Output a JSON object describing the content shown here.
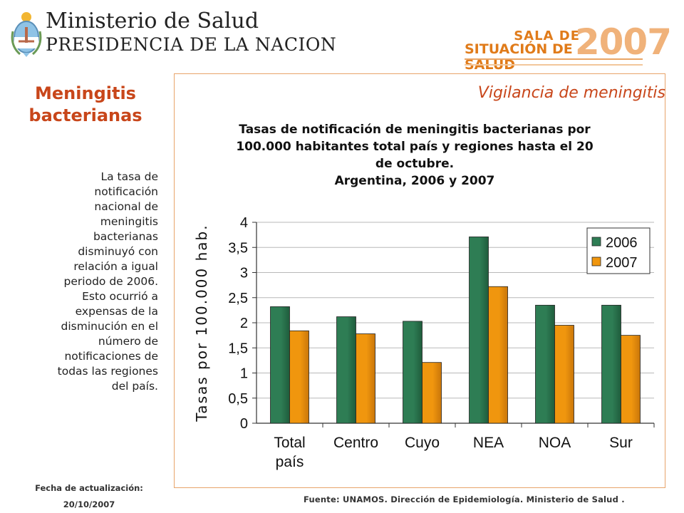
{
  "header": {
    "logo_icon": "argentina-coat-of-arms-icon",
    "ministry_name": "Ministerio de Salud",
    "ministry_sub": "PRESIDENCIA DE LA NACION",
    "sala_line1": "SALA DE",
    "sala_line2": "SITUACIÓN DE SALUD",
    "sala_year": "2007"
  },
  "sidebar": {
    "title_line1": "Meningitis",
    "title_line2": "bacterianas",
    "body_lines": [
      "La tasa de",
      "notificación",
      "nacional de",
      "meningitis",
      "bacterianas",
      "disminuyó con",
      "relación a igual",
      "periodo de 2006.",
      "Esto ocurrió a",
      "expensas de la",
      "disminución en el",
      "número de",
      "notificaciones de",
      "todas las regiones",
      "del país."
    ]
  },
  "frame": {
    "title": "Vigilancia de meningitis"
  },
  "chart_title": {
    "line1": "Tasas de notificación de meningitis bacterianas por",
    "line2": "100.000 habitantes total país y regiones hasta el 20",
    "line3": "de octubre.",
    "line4": "Argentina, 2006 y 2007"
  },
  "footer": {
    "update_label": "Fecha de actualización:",
    "update_date": "20/10/2007",
    "source": "Fuente: UNAMOS. Dirección de Epidemiología. Ministerio de Salud ."
  },
  "colors": {
    "accent": "#c8461a",
    "series_2006": "#2e7d54",
    "series_2007": "#f0960e",
    "frame_border": "#e8a46a"
  },
  "chart_data": {
    "type": "bar",
    "categories": [
      [
        "Total",
        "país"
      ],
      [
        "Centro"
      ],
      [
        "Cuyo"
      ],
      [
        "NEA"
      ],
      [
        "NOA"
      ],
      [
        "Sur"
      ]
    ],
    "series": [
      {
        "name": "2006",
        "values": [
          2.32,
          2.12,
          2.03,
          3.71,
          2.35,
          2.35
        ]
      },
      {
        "name": "2007",
        "values": [
          1.84,
          1.78,
          1.21,
          2.72,
          1.95,
          1.75
        ]
      }
    ],
    "ylabel": "Tasas por 100.000 hab.",
    "ylim": [
      0,
      4
    ],
    "yticks": [
      "0",
      "0,5",
      "1",
      "1,5",
      "2",
      "2,5",
      "3",
      "3,5",
      "4"
    ],
    "grid": true,
    "legend_position": "top-right"
  }
}
